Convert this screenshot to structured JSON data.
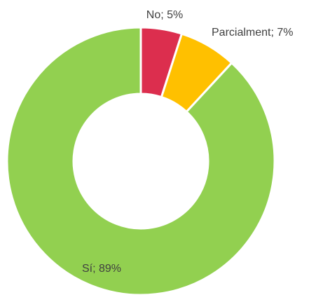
{
  "chart_data": {
    "type": "donut",
    "values": [
      5,
      7,
      89
    ],
    "value_labels": [
      "No; 5%",
      "Parcialment; 7%",
      "Sí; 89%"
    ],
    "colors": [
      "#dc2e4e",
      "#ffc000",
      "#92d050"
    ]
  }
}
